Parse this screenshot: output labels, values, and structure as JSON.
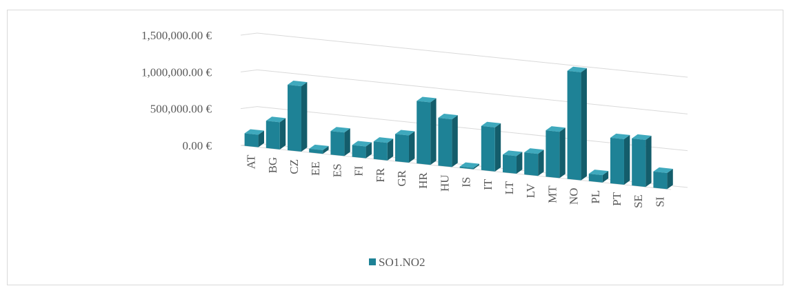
{
  "chart_data": {
    "type": "bar",
    "title": "",
    "xlabel": "",
    "ylabel": "",
    "categories": [
      "AT",
      "BG",
      "CZ",
      "EE",
      "ES",
      "FI",
      "FR",
      "GR",
      "HR",
      "HU",
      "IS",
      "IT",
      "LT",
      "LV",
      "MT",
      "NO",
      "PL",
      "PT",
      "SE",
      "SI"
    ],
    "series": [
      {
        "name": "SO1.NO2",
        "values": [
          170000,
          370000,
          890000,
          50000,
          320000,
          160000,
          240000,
          370000,
          850000,
          650000,
          6000,
          600000,
          240000,
          300000,
          630000,
          1470000,
          100000,
          620000,
          640000,
          220000
        ]
      }
    ],
    "y_ticks": [
      "0.00 €",
      "500,000.00 €",
      "1,000,000.00 €",
      "1,500,000.00 €"
    ],
    "ylim": [
      0,
      1500000
    ],
    "grid": true,
    "legend_position": "bottom",
    "colors": {
      "bar_front": "#1e8296",
      "bar_side": "#145d6b",
      "bar_top": "#3fa9bd",
      "grid": "#d9d9d9",
      "text": "#595959"
    }
  }
}
